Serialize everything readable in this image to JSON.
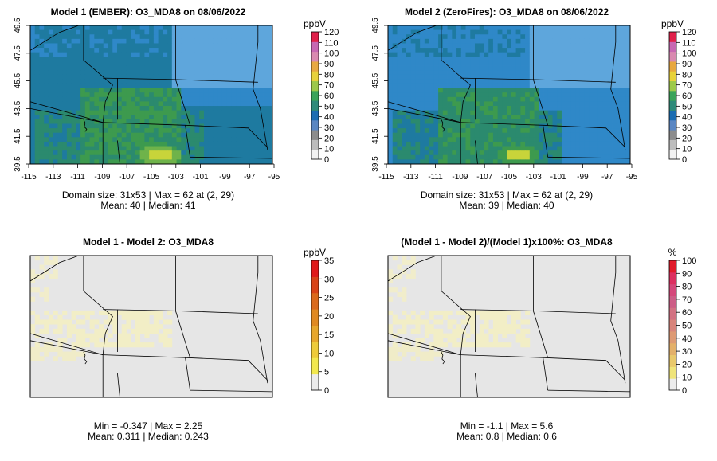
{
  "colorbar": {
    "ozone": {
      "unit": "ppbV",
      "ticks": [
        "0",
        "10",
        "20",
        "30",
        "40",
        "50",
        "60",
        "70",
        "80",
        "90",
        "100",
        "110",
        "120"
      ],
      "colors": [
        "#f2f2f2",
        "#bdbdbd",
        "#8c8c8c",
        "#5a86c2",
        "#1c6db2",
        "#2f8a7a",
        "#3ba35a",
        "#9dc94a",
        "#e8d23a",
        "#e8a840",
        "#d98ab0",
        "#c768b2",
        "#e0204a"
      ]
    },
    "diff": {
      "unit": "ppbV",
      "ticks": [
        "0",
        "5",
        "10",
        "15",
        "20",
        "25",
        "30",
        "35"
      ],
      "colors": [
        "#ececec",
        "#f2e84e",
        "#eecb3a",
        "#e7a72c",
        "#e08a22",
        "#da6a1c",
        "#d84418",
        "#e01a1a"
      ]
    },
    "pct": {
      "unit": "%",
      "ticks": [
        "0",
        "10",
        "20",
        "30",
        "40",
        "50",
        "60",
        "70",
        "80",
        "90",
        "100"
      ],
      "colors": [
        "#ececec",
        "#efe47a",
        "#e9c96c",
        "#e3b06a",
        "#dd9a74",
        "#d8857c",
        "#d27282",
        "#cc5d86",
        "#d4487a",
        "#dc3060",
        "#e01a2a"
      ]
    }
  },
  "chart_data": [
    {
      "type": "heatmap",
      "title": "Model 1 (EMBER): O3_MDA8 on 08/06/2022",
      "xlabel": "",
      "ylabel": "",
      "xticks": [
        "-115",
        "-113",
        "-111",
        "-109",
        "-107",
        "-105",
        "-103",
        "-101",
        "-99",
        "-97",
        "-95"
      ],
      "yticks": [
        "39.5",
        "41.5",
        "43.5",
        "45.5",
        "47.5",
        "49.5"
      ],
      "xlim": [
        -115,
        -95
      ],
      "ylim": [
        39.5,
        49.5
      ],
      "domain_size": "31x53",
      "max_value": 62,
      "max_location": "(2, 29)",
      "mean": 40,
      "median": 41,
      "caption1": "Domain size: 31x53 | Max = 62 at (2, 29)",
      "caption2": "Mean: 40 |  Median: 41",
      "colorbar": "ozone"
    },
    {
      "type": "heatmap",
      "title": "Model 2 (ZeroFires): O3_MDA8 on 08/06/2022",
      "xlabel": "",
      "ylabel": "",
      "xticks": [
        "-115",
        "-113",
        "-111",
        "-109",
        "-107",
        "-105",
        "-103",
        "-101",
        "-99",
        "-97",
        "-95"
      ],
      "yticks": [
        "39.5",
        "41.5",
        "43.5",
        "45.5",
        "47.5",
        "49.5"
      ],
      "xlim": [
        -115,
        -95
      ],
      "ylim": [
        39.5,
        49.5
      ],
      "domain_size": "31x53",
      "max_value": 62,
      "max_location": "(2, 29)",
      "mean": 39,
      "median": 40,
      "caption1": "Domain size: 31x53 | Max = 62 at (2, 29)",
      "caption2": "Mean: 39 |  Median: 40",
      "colorbar": "ozone"
    },
    {
      "type": "heatmap",
      "title": "Model 1 - Model 2: O3_MDA8",
      "min_value": -0.347,
      "max_value": 2.25,
      "mean": 0.311,
      "median": 0.243,
      "caption1": "Min = -0.347 | Max = 2.25",
      "caption2": "Mean: 0.311 |  Median: 0.243",
      "colorbar": "diff"
    },
    {
      "type": "heatmap",
      "title": "(Model 1 - Model 2)/(Model 1)x100%: O3_MDA8",
      "min_value": -1.1,
      "max_value": 5.6,
      "mean": 0.8,
      "median": 0.6,
      "caption1": "Min = -1.1 | Max = 5.6",
      "caption2": "Mean: 0.8 |  Median: 0.6",
      "colorbar": "pct"
    }
  ]
}
